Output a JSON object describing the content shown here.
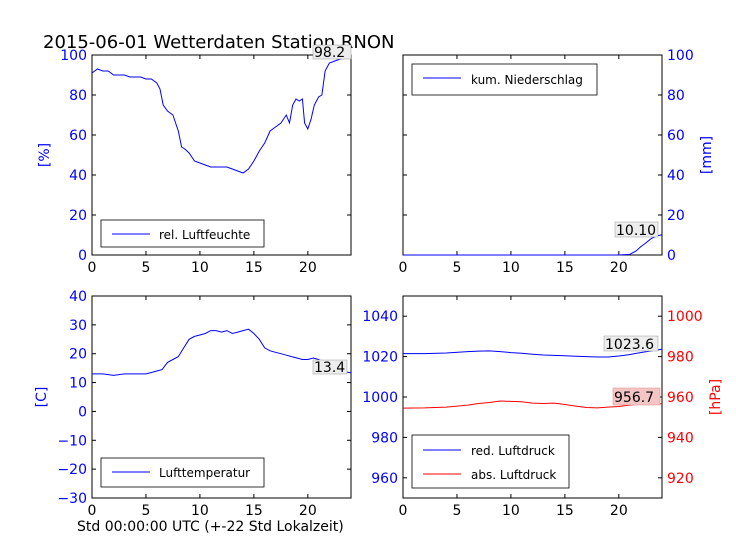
{
  "figure": {
    "title": "2015-06-01 Wetterdaten Station RNON",
    "xlabel": "Std 00:00:00 UTC (+-22 Std Lokalzeit)"
  },
  "colors": {
    "blue": "#0000ff",
    "red": "#ff0000",
    "annotation_fill_red": "#f5c4c4"
  },
  "chart_data": [
    {
      "id": "humidity",
      "type": "line",
      "xlim": [
        0,
        24
      ],
      "ylim": [
        0,
        100
      ],
      "xticks": [
        "0",
        "5",
        "10",
        "15",
        "20"
      ],
      "yticks": [
        "0",
        "20",
        "40",
        "60",
        "80",
        "100"
      ],
      "ylabel": "[%]",
      "legend": {
        "placement": "lower-left",
        "entries": [
          "rel. Luftfeuchte"
        ]
      },
      "annotation": "98.2",
      "series": [
        {
          "name": "rel. Luftfeuchte",
          "color": "#0000ff",
          "x": [
            0,
            0.5,
            1,
            1.5,
            2,
            2.5,
            3,
            3.5,
            4,
            4.5,
            5,
            5.5,
            6,
            6.3,
            6.6,
            7,
            7.5,
            8,
            8.3,
            8.6,
            9,
            9.5,
            10,
            10.5,
            11,
            11.5,
            12,
            12.5,
            13,
            13.5,
            14,
            14.5,
            15,
            15.5,
            16,
            16.5,
            17,
            17.5,
            18,
            18.3,
            18.6,
            18.9,
            19.2,
            19.5,
            19.7,
            20,
            20.3,
            20.6,
            21,
            21.3,
            21.6,
            22,
            22.5,
            23,
            23.5,
            24
          ],
          "y": [
            91,
            93,
            92,
            92,
            90,
            90,
            90,
            89,
            89,
            89,
            88,
            88,
            86,
            83,
            75,
            72,
            70,
            62,
            54,
            53,
            51,
            47,
            46,
            45,
            44,
            44,
            44,
            44,
            43,
            42,
            41,
            43,
            47,
            52,
            56,
            62,
            64,
            66,
            70,
            66,
            75,
            78,
            77,
            78,
            66,
            63,
            68,
            75,
            79,
            80,
            92,
            96,
            97,
            98,
            98.5,
            98.2
          ]
        }
      ]
    },
    {
      "id": "precipitation",
      "type": "line",
      "xlim": [
        0,
        24
      ],
      "ylim": [
        0,
        100
      ],
      "xticks": [
        "0",
        "5",
        "10",
        "15",
        "20"
      ],
      "yticks": [
        "0",
        "20",
        "40",
        "60",
        "80",
        "100"
      ],
      "ylabel": "[mm]",
      "legend": {
        "placement": "upper-left",
        "entries": [
          "kum. Niederschlag"
        ]
      },
      "annotation": "10.10",
      "series": [
        {
          "name": "kum. Niederschlag",
          "color": "#0000ff",
          "x": [
            0,
            20,
            21,
            21.6,
            22,
            22.5,
            23,
            23.5,
            24
          ],
          "y": [
            0,
            0,
            0.3,
            2,
            4,
            6,
            8.2,
            9.5,
            10.1
          ]
        }
      ]
    },
    {
      "id": "temperature",
      "type": "line",
      "xlim": [
        0,
        24
      ],
      "ylim": [
        -30,
        40
      ],
      "xticks": [
        "0",
        "5",
        "10",
        "15",
        "20"
      ],
      "yticks": [
        "−30",
        "−20",
        "−10",
        "0",
        "10",
        "20",
        "30",
        "40"
      ],
      "ylabel": "[C]",
      "legend": {
        "placement": "lower-left",
        "entries": [
          "Lufttemperatur"
        ]
      },
      "annotation": "13.4",
      "series": [
        {
          "name": "Lufttemperatur",
          "color": "#0000ff",
          "x": [
            0,
            1,
            2,
            3,
            4,
            5,
            5.5,
            6,
            6.5,
            7,
            7.5,
            8,
            8.5,
            9,
            9.5,
            10,
            10.5,
            11,
            11.5,
            12,
            12.5,
            13,
            13.5,
            14,
            14.5,
            15,
            15.5,
            16,
            16.5,
            17,
            17.5,
            18,
            18.5,
            19,
            19.5,
            20,
            20.5,
            21,
            21.5,
            22,
            23,
            24
          ],
          "y": [
            13,
            13,
            12.5,
            13,
            13,
            13,
            13.5,
            14,
            14.5,
            17,
            18,
            19,
            22,
            25,
            26,
            26.5,
            27,
            28,
            28,
            27.5,
            28,
            27,
            27.5,
            28,
            28.5,
            27,
            25,
            22,
            21,
            20.5,
            20,
            19.5,
            19,
            18.5,
            18,
            18,
            18.5,
            18,
            17,
            15,
            14,
            13.4
          ]
        }
      ]
    },
    {
      "id": "pressure",
      "type": "line",
      "xlim": [
        0,
        24
      ],
      "ylim": [
        950,
        1050
      ],
      "ylim_right": [
        910,
        1010
      ],
      "xticks": [
        "0",
        "5",
        "10",
        "15",
        "20"
      ],
      "yticks": [
        "960",
        "980",
        "1000",
        "1020",
        "1040"
      ],
      "yticks_right": [
        "920",
        "940",
        "960",
        "980",
        "1000"
      ],
      "ylabel_right": "[hPa]",
      "legend": {
        "placement": "lower-left",
        "entries": [
          "red. Luftdruck",
          "abs. Luftdruck"
        ]
      },
      "annotations": [
        "1023.6",
        "956.7"
      ],
      "series": [
        {
          "name": "red. Luftdruck",
          "color": "#0000ff",
          "axis": "left",
          "x": [
            0,
            2,
            4,
            6,
            7,
            8,
            9,
            10,
            11,
            12,
            13,
            14,
            15,
            16,
            17,
            18,
            19,
            20,
            21,
            22,
            23,
            24
          ],
          "y": [
            1021.5,
            1021.5,
            1021.8,
            1022.5,
            1022.7,
            1022.8,
            1022.5,
            1022,
            1021.7,
            1021.2,
            1020.8,
            1020.6,
            1020.4,
            1020.2,
            1020,
            1019.8,
            1019.8,
            1020.3,
            1021,
            1022,
            1022.8,
            1023.6
          ]
        },
        {
          "name": "abs. Luftdruck",
          "color": "#ff0000",
          "axis": "right",
          "x": [
            0,
            2,
            4,
            5,
            6,
            7,
            8,
            9,
            10,
            11,
            12,
            13,
            14,
            15,
            16,
            17,
            18,
            19,
            20,
            21,
            22,
            23,
            24
          ],
          "y": [
            954.5,
            954.6,
            955,
            955.5,
            956,
            956.8,
            957.3,
            958,
            957.8,
            957.6,
            957,
            956.8,
            957,
            956.3,
            955.5,
            954.8,
            954.6,
            955,
            955.3,
            956,
            956.5,
            956.6,
            956.7
          ]
        }
      ]
    }
  ]
}
